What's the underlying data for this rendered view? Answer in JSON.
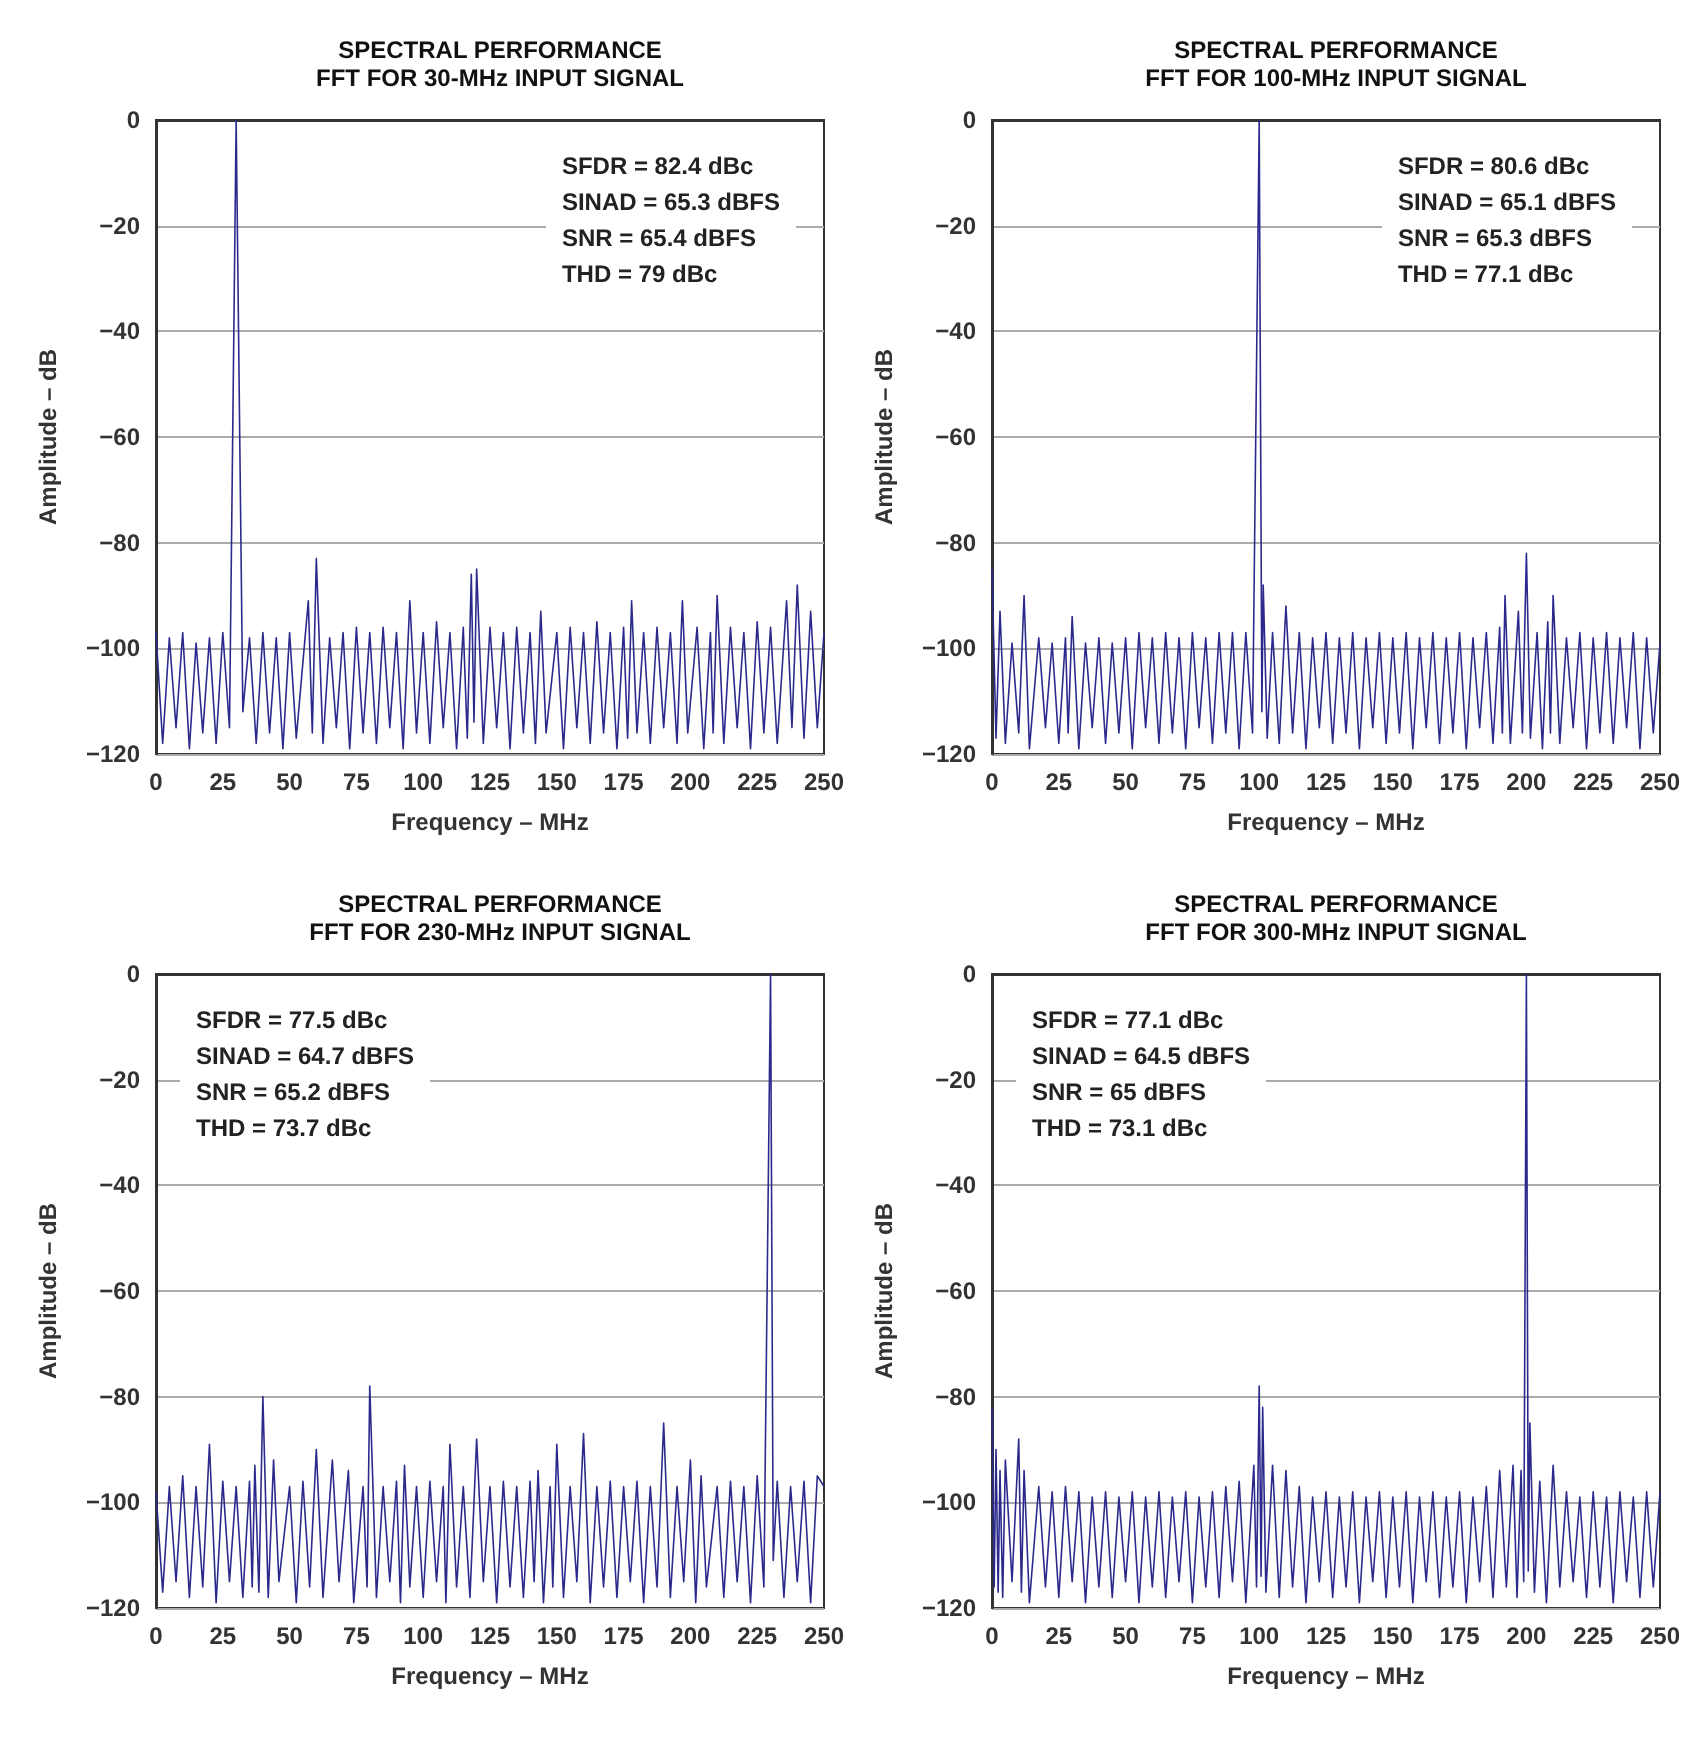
{
  "chart_data": [
    {
      "type": "line",
      "title": "SPECTRAL PERFORMANCE",
      "subtitle": "FFT FOR 30-MHz INPUT SIGNAL",
      "xlabel": "Frequency – MHz",
      "ylabel": "Amplitude – dB",
      "color": "#2b2a8c",
      "grid": "y",
      "xlim": [
        0,
        250
      ],
      "ylim": [
        -120,
        0
      ],
      "xticks": [
        0,
        25,
        50,
        75,
        100,
        125,
        150,
        175,
        200,
        225,
        250
      ],
      "yticks": [
        -120,
        -100,
        -80,
        -60,
        -40,
        -20,
        0
      ],
      "annotations": [
        "SFDR = 82.4 dBc",
        "SINAD = 65.3 dBFS",
        "SNR = 65.4 dBFS",
        "THD = 79 dBc"
      ],
      "x": [
        0,
        2.5,
        5,
        7.5,
        10,
        12.5,
        15,
        17.5,
        20,
        22.5,
        25,
        27.5,
        30,
        32.5,
        35,
        37.5,
        40,
        42.5,
        45,
        47.5,
        50,
        52.5,
        57,
        58.5,
        60,
        62.5,
        65,
        67.5,
        70,
        72.5,
        75,
        77.5,
        80,
        82.5,
        85,
        87.5,
        90,
        92.5,
        95,
        97.5,
        100,
        102.5,
        105,
        107.5,
        110,
        112.5,
        115,
        116.5,
        118,
        119,
        120,
        122.5,
        125,
        127.5,
        130,
        132.5,
        135,
        137.5,
        140,
        142,
        144,
        146,
        150,
        152.5,
        155,
        157.5,
        160,
        162.5,
        165,
        167.5,
        170,
        172.5,
        175,
        176.5,
        178,
        180,
        182.5,
        185,
        187.5,
        190,
        192.5,
        195,
        197,
        199,
        202.5,
        205,
        207.5,
        208.5,
        210,
        212.5,
        215,
        217.5,
        220,
        222.5,
        225,
        227.5,
        230,
        232.5,
        236,
        238,
        240,
        242.5,
        245,
        247.5,
        250
      ],
      "values": [
        -97,
        -118,
        -98,
        -115,
        -97,
        -119,
        -99,
        -116,
        -98,
        -118,
        -97,
        -115,
        0,
        -112,
        -98,
        -118,
        -97,
        -116,
        -98,
        -119,
        -97,
        -117,
        -91,
        -116,
        -83,
        -118,
        -98,
        -115,
        -97,
        -119,
        -96,
        -116,
        -97,
        -118,
        -96,
        -115,
        -97,
        -119,
        -91,
        -116,
        -97,
        -118,
        -95,
        -115,
        -97,
        -119,
        -96,
        -117,
        -86,
        -114,
        -85,
        -118,
        -96,
        -115,
        -97,
        -119,
        -96,
        -116,
        -97,
        -118,
        -93,
        -116,
        -97,
        -119,
        -96,
        -115,
        -97,
        -118,
        -95,
        -116,
        -97,
        -119,
        -96,
        -117,
        -91,
        -116,
        -97,
        -118,
        -96,
        -115,
        -97,
        -118,
        -91,
        -116,
        -96,
        -119,
        -97,
        -116,
        -90,
        -118,
        -96,
        -115,
        -97,
        -119,
        -95,
        -116,
        -96,
        -118,
        -91,
        -115,
        -88,
        -117,
        -93,
        -115,
        -97
      ]
    },
    {
      "type": "line",
      "title": "SPECTRAL PERFORMANCE",
      "subtitle": "FFT FOR 100-MHz INPUT SIGNAL",
      "xlabel": "Frequency – MHz",
      "ylabel": "Amplitude – dB",
      "color": "#2b2a8c",
      "grid": "y",
      "xlim": [
        0,
        250
      ],
      "ylim": [
        -120,
        0
      ],
      "xticks": [
        0,
        25,
        50,
        75,
        100,
        125,
        150,
        175,
        200,
        225,
        250
      ],
      "yticks": [
        -120,
        -100,
        -80,
        -60,
        -40,
        -20,
        0
      ],
      "annotations": [
        "SFDR = 80.6 dBc",
        "SINAD = 65.1 dBFS",
        "SNR = 65.3 dBFS",
        "THD = 77.1 dBc"
      ],
      "x": [
        0,
        1.5,
        3,
        5,
        7.5,
        10,
        12,
        14,
        17.5,
        20,
        22.5,
        25,
        27.5,
        28.5,
        30,
        32.5,
        35,
        37.5,
        40,
        42.5,
        45,
        47.5,
        50,
        52.5,
        55,
        57.5,
        60,
        62.5,
        65,
        67.5,
        70,
        72.5,
        75,
        77.5,
        80,
        82.5,
        85,
        87.5,
        90,
        92.5,
        95,
        97.5,
        100,
        101,
        101.5,
        103,
        105,
        107.5,
        110,
        112.5,
        115,
        117.5,
        120,
        122.5,
        125,
        127.5,
        130,
        132.5,
        135,
        137.5,
        140,
        142.5,
        145,
        147.5,
        150,
        152.5,
        155,
        157.5,
        160,
        162.5,
        165,
        167.5,
        170,
        172.5,
        175,
        177.5,
        180,
        182.5,
        185,
        187.5,
        190,
        191,
        192,
        194,
        197,
        198.5,
        200,
        201.5,
        204,
        206,
        208,
        209,
        210,
        212.5,
        215,
        217.5,
        220,
        222.5,
        225,
        227.5,
        230,
        232.5,
        235,
        237.5,
        240,
        242.5,
        245,
        247.5,
        250
      ],
      "values": [
        -85,
        -117,
        -93,
        -118,
        -99,
        -116,
        -90,
        -119,
        -98,
        -115,
        -99,
        -118,
        -98,
        -116,
        -94,
        -119,
        -99,
        -115,
        -98,
        -118,
        -99,
        -116,
        -98,
        -119,
        -97,
        -115,
        -98,
        -118,
        -97,
        -116,
        -98,
        -119,
        -97,
        -115,
        -98,
        -118,
        -97,
        -116,
        -97,
        -119,
        -97,
        -116,
        0,
        -112,
        -88,
        -117,
        -97,
        -118,
        -92,
        -116,
        -97,
        -119,
        -98,
        -115,
        -97,
        -118,
        -98,
        -116,
        -97,
        -119,
        -98,
        -115,
        -97,
        -118,
        -98,
        -116,
        -97,
        -119,
        -98,
        -115,
        -97,
        -118,
        -98,
        -116,
        -97,
        -119,
        -98,
        -115,
        -97,
        -118,
        -96,
        -116,
        -90,
        -118,
        -93,
        -116,
        -82,
        -117,
        -97,
        -119,
        -95,
        -116,
        -90,
        -118,
        -98,
        -115,
        -97,
        -119,
        -98,
        -116,
        -97,
        -118,
        -98,
        -115,
        -97,
        -119,
        -98,
        -116,
        -99
      ]
    },
    {
      "type": "line",
      "title": "SPECTRAL PERFORMANCE",
      "subtitle": "FFT FOR 230-MHz INPUT SIGNAL",
      "xlabel": "Frequency – MHz",
      "ylabel": "Amplitude – dB",
      "color": "#2b2a8c",
      "grid": "y",
      "xlim": [
        0,
        250
      ],
      "ylim": [
        -120,
        0
      ],
      "xticks": [
        0,
        25,
        50,
        75,
        100,
        125,
        150,
        175,
        200,
        225,
        250
      ],
      "yticks": [
        -120,
        -100,
        -80,
        -60,
        -40,
        -20,
        0
      ],
      "annotations": [
        "SFDR = 77.5 dBc",
        "SINAD = 64.7 dBFS",
        "SNR = 65.2 dBFS",
        "THD = 73.7 dBc"
      ],
      "x": [
        0,
        2.5,
        5,
        7.5,
        10,
        12.5,
        15,
        17.5,
        20,
        22.5,
        25,
        27.5,
        30,
        32.5,
        35,
        36,
        37,
        38.5,
        40,
        42,
        44,
        46,
        50,
        52.5,
        55,
        57.5,
        60,
        62.5,
        66,
        68.5,
        72,
        74,
        77.5,
        79,
        80,
        82.5,
        85,
        87.5,
        90,
        91.5,
        93,
        95,
        97.5,
        100,
        102.5,
        105,
        107.5,
        108.5,
        110,
        112.5,
        115,
        117.5,
        120,
        122.5,
        125,
        127.5,
        130,
        132.5,
        135,
        137.5,
        140,
        141.5,
        143,
        145,
        147.5,
        148.5,
        150,
        152.5,
        155,
        157.5,
        160,
        162.5,
        165,
        167.5,
        170,
        172.5,
        175,
        177.5,
        180,
        182.5,
        185,
        187.5,
        190,
        192.5,
        195,
        197.5,
        200,
        202,
        204,
        206,
        210,
        212.5,
        215,
        217.5,
        220,
        222.5,
        225,
        227.5,
        230,
        231,
        232.5,
        235,
        237.5,
        240,
        242.5,
        245,
        247.5,
        250
      ],
      "values": [
        -98,
        -117,
        -97,
        -115,
        -95,
        -118,
        -97,
        -116,
        -89,
        -119,
        -96,
        -115,
        -97,
        -118,
        -96,
        -116,
        -93,
        -117,
        -80,
        -118,
        -92,
        -115,
        -97,
        -119,
        -96,
        -116,
        -90,
        -118,
        -92,
        -115,
        -94,
        -119,
        -97,
        -116,
        -78,
        -118,
        -97,
        -115,
        -96,
        -119,
        -93,
        -116,
        -97,
        -118,
        -96,
        -115,
        -97,
        -119,
        -89,
        -116,
        -97,
        -118,
        -88,
        -115,
        -97,
        -119,
        -96,
        -116,
        -97,
        -118,
        -96,
        -115,
        -94,
        -119,
        -97,
        -116,
        -89,
        -118,
        -97,
        -115,
        -87,
        -119,
        -97,
        -116,
        -96,
        -118,
        -97,
        -115,
        -96,
        -119,
        -97,
        -116,
        -85,
        -118,
        -97,
        -115,
        -92,
        -119,
        -95,
        -116,
        -97,
        -118,
        -96,
        -115,
        -97,
        -119,
        -95,
        -116,
        0,
        -111,
        -96,
        -118,
        -97,
        -115,
        -96,
        -119,
        -95,
        -97
      ]
    },
    {
      "type": "line",
      "title": "SPECTRAL PERFORMANCE",
      "subtitle": "FFT FOR 300-MHz INPUT SIGNAL",
      "xlabel": "Frequency – MHz",
      "ylabel": "Amplitude – dB",
      "color": "#2b2a8c",
      "grid": "y",
      "xlim": [
        0,
        250
      ],
      "ylim": [
        -120,
        0
      ],
      "xticks": [
        0,
        25,
        50,
        75,
        100,
        125,
        150,
        175,
        200,
        225,
        250
      ],
      "yticks": [
        -120,
        -100,
        -80,
        -60,
        -40,
        -20,
        0
      ],
      "annotations": [
        "SFDR = 77.1 dBc",
        "SINAD = 64.5 dBFS",
        "SNR = 65 dBFS",
        "THD = 73.1 dBc"
      ],
      "x": [
        0,
        0.8,
        1.5,
        2.3,
        3,
        4,
        5,
        7.5,
        10,
        11,
        12,
        14,
        17.5,
        20,
        22.5,
        25,
        27.5,
        30,
        32.5,
        35,
        37.5,
        40,
        42.5,
        45,
        47.5,
        50,
        52.5,
        55,
        57.5,
        60,
        62.5,
        65,
        67.5,
        70,
        72.5,
        75,
        77.5,
        80,
        82.5,
        85,
        87.5,
        90,
        92.5,
        95,
        98,
        99,
        100,
        100.7,
        101.3,
        102.5,
        105,
        107.5,
        110,
        112.5,
        115,
        117.5,
        120,
        122.5,
        125,
        127.5,
        130,
        132.5,
        135,
        137.5,
        140,
        142.5,
        145,
        147.5,
        150,
        152.5,
        155,
        157.5,
        160,
        162.5,
        165,
        167.5,
        170,
        172.5,
        175,
        177.5,
        180,
        182.5,
        185,
        187.5,
        190,
        192.5,
        195,
        196.5,
        198,
        199,
        200,
        200.7,
        201.3,
        203,
        205,
        207.5,
        210,
        212.5,
        215,
        217.5,
        220,
        222.5,
        225,
        227.5,
        230,
        232.5,
        235,
        237.5,
        240,
        242.5,
        245,
        247.5,
        250
      ],
      "values": [
        -82,
        -116,
        -90,
        -117,
        -94,
        -118,
        -92,
        -115,
        -88,
        -117,
        -94,
        -119,
        -97,
        -116,
        -98,
        -118,
        -97,
        -115,
        -98,
        -119,
        -99,
        -116,
        -98,
        -118,
        -99,
        -115,
        -98,
        -119,
        -99,
        -116,
        -98,
        -118,
        -99,
        -115,
        -98,
        -119,
        -99,
        -116,
        -98,
        -118,
        -97,
        -115,
        -96,
        -119,
        -93,
        -116,
        -78,
        -114,
        -82,
        -117,
        -93,
        -118,
        -94,
        -116,
        -97,
        -119,
        -99,
        -115,
        -98,
        -118,
        -99,
        -116,
        -98,
        -119,
        -99,
        -115,
        -98,
        -118,
        -99,
        -116,
        -98,
        -119,
        -99,
        -115,
        -98,
        -118,
        -99,
        -116,
        -98,
        -119,
        -99,
        -115,
        -97,
        -118,
        -94,
        -116,
        -93,
        -118,
        -94,
        -115,
        0,
        -113,
        -85,
        -117,
        -96,
        -119,
        -93,
        -116,
        -98,
        -115,
        -99,
        -118,
        -98,
        -116,
        -99,
        -119,
        -98,
        -115,
        -99,
        -118,
        -98,
        -116,
        -98
      ]
    }
  ]
}
